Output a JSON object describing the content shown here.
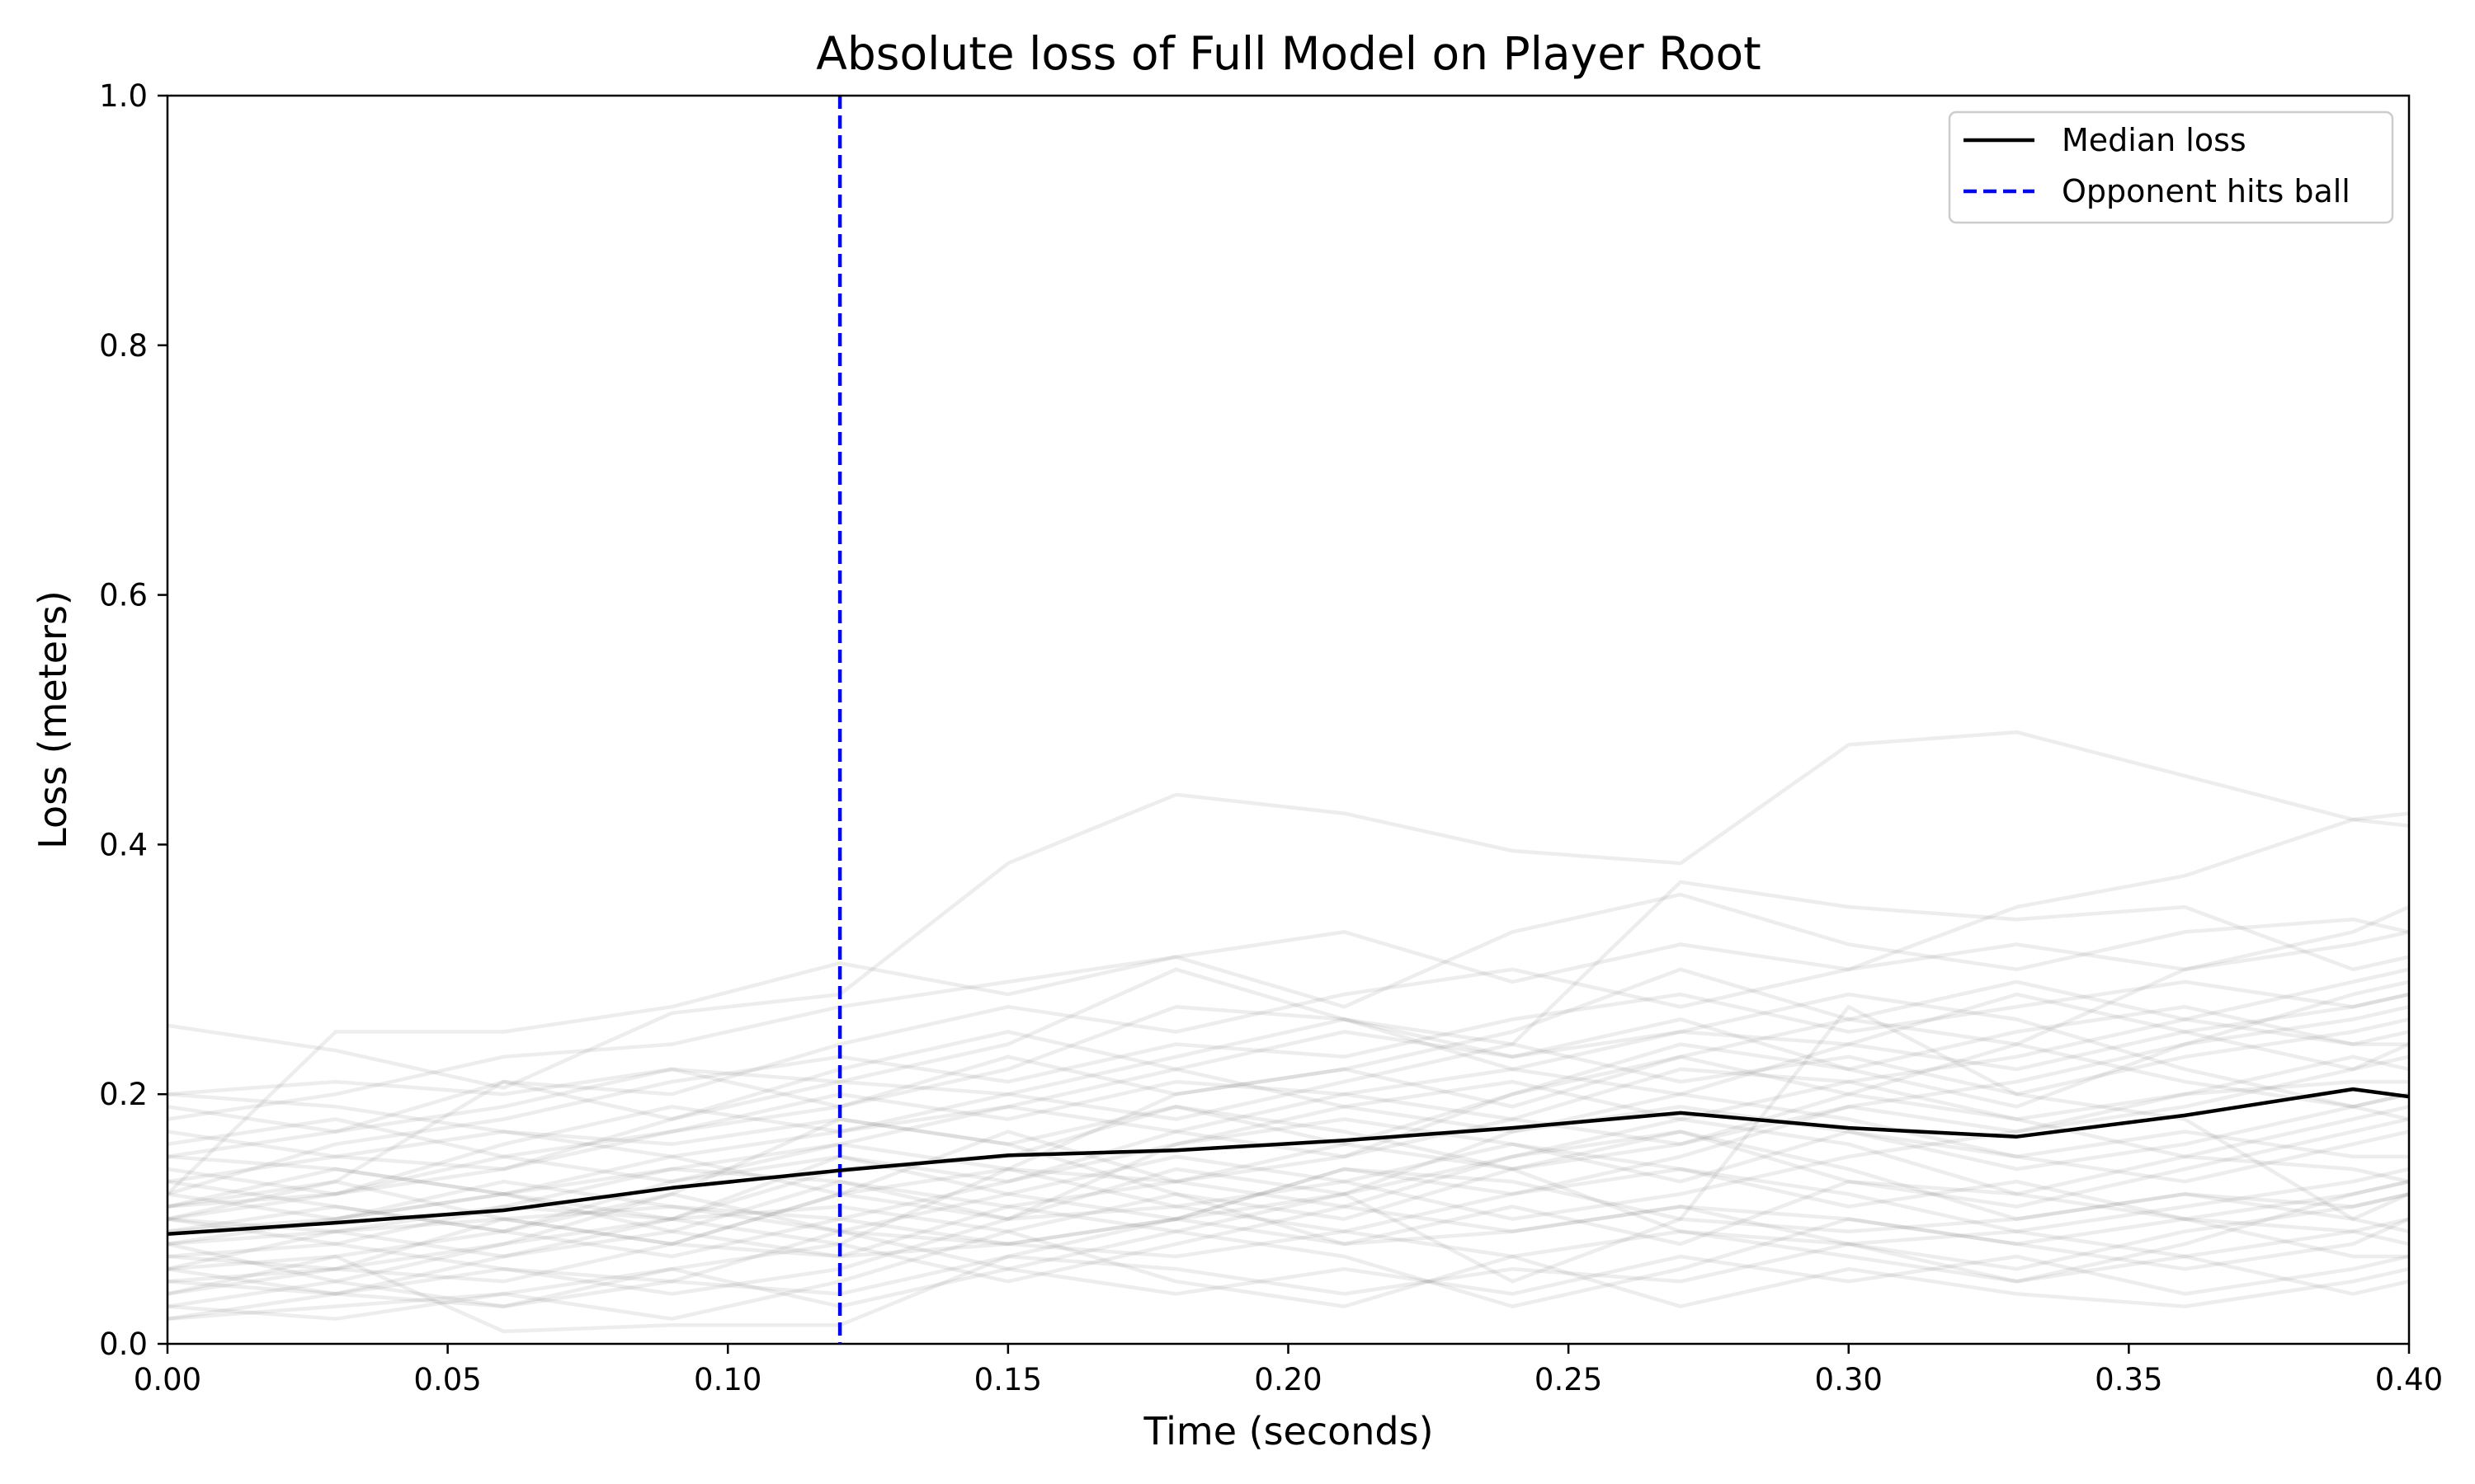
{
  "chart_data": {
    "type": "line",
    "title": "Absolute loss of Full Model on Player Root",
    "xlabel": "Time (seconds)",
    "ylabel": "Loss (meters)",
    "xlim": [
      0.0,
      0.4
    ],
    "ylim": [
      0.0,
      1.0
    ],
    "xticks": [
      "0.00",
      "0.05",
      "0.10",
      "0.15",
      "0.20",
      "0.25",
      "0.30",
      "0.35",
      "0.40"
    ],
    "yticks": [
      "0.0",
      "0.2",
      "0.4",
      "0.6",
      "0.8",
      "1.0"
    ],
    "grid": false,
    "legend_position": "top-right",
    "x": [
      0.0,
      0.03,
      0.06,
      0.09,
      0.12,
      0.15,
      0.18,
      0.21,
      0.24,
      0.27,
      0.3,
      0.33,
      0.36,
      0.39,
      0.4
    ],
    "series": [
      {
        "name": "Median loss",
        "color": "#000000",
        "style": "solid",
        "values": [
          0.088,
          0.097,
          0.107,
          0.125,
          0.139,
          0.151,
          0.155,
          0.163,
          0.173,
          0.185,
          0.173,
          0.166,
          0.183,
          0.204,
          0.198
        ]
      }
    ],
    "vertical_lines": [
      {
        "name": "Opponent hits ball",
        "x": 0.12,
        "color": "#0000ff",
        "style": "dashed"
      }
    ],
    "background_series_color": "#808080",
    "background_series": [
      [
        0.255,
        0.235,
        0.205,
        0.265,
        0.28,
        0.385,
        0.44,
        0.425,
        0.395,
        0.385,
        0.48,
        0.49,
        0.455,
        0.42,
        0.425
      ],
      [
        0.12,
        0.25,
        0.25,
        0.27,
        0.305,
        0.28,
        0.31,
        0.33,
        0.29,
        0.32,
        0.3,
        0.35,
        0.375,
        0.42,
        0.415
      ],
      [
        0.1,
        0.13,
        0.21,
        0.18,
        0.21,
        0.24,
        0.3,
        0.26,
        0.24,
        0.37,
        0.35,
        0.34,
        0.35,
        0.3,
        0.31
      ],
      [
        0.06,
        0.07,
        0.01,
        0.015,
        0.015,
        0.07,
        0.1,
        0.12,
        0.05,
        0.1,
        0.27,
        0.2,
        0.18,
        0.1,
        0.12
      ],
      [
        0.2,
        0.21,
        0.2,
        0.22,
        0.21,
        0.2,
        0.23,
        0.26,
        0.22,
        0.25,
        0.24,
        0.28,
        0.25,
        0.22,
        0.24
      ],
      [
        0.03,
        0.05,
        0.08,
        0.12,
        0.18,
        0.16,
        0.12,
        0.1,
        0.14,
        0.09,
        0.08,
        0.05,
        0.07,
        0.09,
        0.08
      ],
      [
        0.15,
        0.14,
        0.12,
        0.1,
        0.08,
        0.14,
        0.2,
        0.22,
        0.25,
        0.3,
        0.26,
        0.24,
        0.3,
        0.33,
        0.35
      ],
      [
        0.08,
        0.09,
        0.1,
        0.08,
        0.07,
        0.11,
        0.13,
        0.15,
        0.2,
        0.23,
        0.2,
        0.18,
        0.15,
        0.14,
        0.13
      ],
      [
        0.11,
        0.12,
        0.14,
        0.17,
        0.19,
        0.22,
        0.27,
        0.26,
        0.23,
        0.25,
        0.28,
        0.26,
        0.22,
        0.19,
        0.2
      ],
      [
        0.05,
        0.04,
        0.06,
        0.05,
        0.09,
        0.06,
        0.09,
        0.07,
        0.03,
        0.06,
        0.1,
        0.08,
        0.06,
        0.08,
        0.1
      ],
      [
        0.18,
        0.2,
        0.23,
        0.24,
        0.27,
        0.29,
        0.31,
        0.27,
        0.33,
        0.36,
        0.32,
        0.3,
        0.33,
        0.34,
        0.33
      ],
      [
        0.07,
        0.06,
        0.05,
        0.08,
        0.12,
        0.17,
        0.13,
        0.11,
        0.15,
        0.17,
        0.14,
        0.1,
        0.12,
        0.11,
        0.12
      ],
      [
        0.13,
        0.11,
        0.09,
        0.13,
        0.15,
        0.12,
        0.1,
        0.14,
        0.12,
        0.15,
        0.19,
        0.21,
        0.24,
        0.26,
        0.27
      ],
      [
        0.02,
        0.03,
        0.04,
        0.02,
        0.05,
        0.09,
        0.05,
        0.03,
        0.07,
        0.03,
        0.06,
        0.04,
        0.03,
        0.05,
        0.06
      ],
      [
        0.16,
        0.18,
        0.15,
        0.17,
        0.2,
        0.18,
        0.21,
        0.2,
        0.18,
        0.22,
        0.21,
        0.23,
        0.26,
        0.29,
        0.3
      ],
      [
        0.1,
        0.08,
        0.11,
        0.14,
        0.13,
        0.1,
        0.16,
        0.18,
        0.16,
        0.13,
        0.17,
        0.15,
        0.13,
        0.16,
        0.17
      ],
      [
        0.04,
        0.07,
        0.09,
        0.07,
        0.1,
        0.13,
        0.16,
        0.19,
        0.21,
        0.18,
        0.16,
        0.12,
        0.1,
        0.07,
        0.07
      ],
      [
        0.12,
        0.16,
        0.18,
        0.21,
        0.23,
        0.21,
        0.24,
        0.23,
        0.26,
        0.28,
        0.25,
        0.27,
        0.29,
        0.27,
        0.28
      ],
      [
        0.09,
        0.1,
        0.13,
        0.11,
        0.1,
        0.08,
        0.07,
        0.09,
        0.12,
        0.14,
        0.12,
        0.09,
        0.11,
        0.13,
        0.14
      ],
      [
        0.06,
        0.09,
        0.07,
        0.1,
        0.14,
        0.15,
        0.19,
        0.17,
        0.14,
        0.16,
        0.2,
        0.24,
        0.21,
        0.19,
        0.18
      ],
      [
        0.14,
        0.12,
        0.16,
        0.19,
        0.17,
        0.2,
        0.18,
        0.21,
        0.24,
        0.21,
        0.23,
        0.2,
        0.23,
        0.25,
        0.26
      ],
      [
        0.08,
        0.05,
        0.03,
        0.06,
        0.08,
        0.05,
        0.08,
        0.11,
        0.09,
        0.11,
        0.08,
        0.06,
        0.09,
        0.11,
        0.12
      ],
      [
        0.19,
        0.17,
        0.21,
        0.2,
        0.24,
        0.27,
        0.25,
        0.28,
        0.3,
        0.27,
        0.3,
        0.32,
        0.3,
        0.32,
        0.33
      ],
      [
        0.11,
        0.14,
        0.12,
        0.15,
        0.12,
        0.14,
        0.11,
        0.13,
        0.1,
        0.12,
        0.15,
        0.17,
        0.19,
        0.22,
        0.23
      ],
      [
        0.07,
        0.08,
        0.06,
        0.04,
        0.06,
        0.1,
        0.14,
        0.12,
        0.17,
        0.2,
        0.18,
        0.15,
        0.17,
        0.15,
        0.15
      ],
      [
        0.13,
        0.15,
        0.17,
        0.16,
        0.18,
        0.16,
        0.19,
        0.16,
        0.2,
        0.24,
        0.22,
        0.25,
        0.27,
        0.24,
        0.24
      ],
      [
        0.05,
        0.06,
        0.08,
        0.1,
        0.11,
        0.09,
        0.12,
        0.08,
        0.11,
        0.08,
        0.13,
        0.11,
        0.14,
        0.17,
        0.18
      ],
      [
        0.1,
        0.12,
        0.15,
        0.13,
        0.16,
        0.19,
        0.22,
        0.25,
        0.23,
        0.26,
        0.22,
        0.19,
        0.24,
        0.28,
        0.29
      ],
      [
        0.03,
        0.02,
        0.04,
        0.06,
        0.03,
        0.06,
        0.04,
        0.06,
        0.04,
        0.07,
        0.05,
        0.07,
        0.04,
        0.06,
        0.07
      ],
      [
        0.17,
        0.15,
        0.14,
        0.18,
        0.22,
        0.25,
        0.22,
        0.19,
        0.17,
        0.19,
        0.17,
        0.14,
        0.16,
        0.19,
        0.2
      ],
      [
        0.09,
        0.11,
        0.09,
        0.12,
        0.09,
        0.12,
        0.15,
        0.13,
        0.16,
        0.14,
        0.11,
        0.13,
        0.1,
        0.09,
        0.1
      ],
      [
        0.12,
        0.1,
        0.12,
        0.09,
        0.13,
        0.11,
        0.09,
        0.12,
        0.15,
        0.18,
        0.21,
        0.18,
        0.2,
        0.23,
        0.22
      ],
      [
        0.06,
        0.04,
        0.07,
        0.09,
        0.07,
        0.08,
        0.1,
        0.14,
        0.13,
        0.1,
        0.09,
        0.1,
        0.12,
        0.1,
        0.09
      ],
      [
        0.15,
        0.17,
        0.19,
        0.22,
        0.19,
        0.23,
        0.2,
        0.22,
        0.19,
        0.23,
        0.26,
        0.29,
        0.26,
        0.24,
        0.25
      ],
      [
        0.04,
        0.06,
        0.1,
        0.08,
        0.12,
        0.1,
        0.11,
        0.09,
        0.07,
        0.09,
        0.07,
        0.05,
        0.08,
        0.12,
        0.13
      ],
      [
        0.1,
        0.09,
        0.11,
        0.1,
        0.15,
        0.13,
        0.17,
        0.15,
        0.18,
        0.16,
        0.19,
        0.17,
        0.2,
        0.21,
        0.21
      ],
      [
        0.02,
        0.04,
        0.03,
        0.05,
        0.04,
        0.07,
        0.06,
        0.04,
        0.06,
        0.05,
        0.08,
        0.09,
        0.07,
        0.04,
        0.05
      ],
      [
        0.2,
        0.19,
        0.17,
        0.15,
        0.17,
        0.19,
        0.17,
        0.2,
        0.22,
        0.2,
        0.24,
        0.22,
        0.25,
        0.27,
        0.28
      ],
      [
        0.08,
        0.1,
        0.12,
        0.14,
        0.16,
        0.14,
        0.13,
        0.16,
        0.14,
        0.17,
        0.13,
        0.12,
        0.15,
        0.18,
        0.19
      ],
      [
        0.11,
        0.13,
        0.1,
        0.11,
        0.09,
        0.08,
        0.1,
        0.08,
        0.09,
        0.11,
        0.1,
        0.08,
        0.1,
        0.12,
        0.13
      ]
    ]
  },
  "legend": {
    "median_label": "Median loss",
    "event_label": "Opponent hits ball"
  }
}
